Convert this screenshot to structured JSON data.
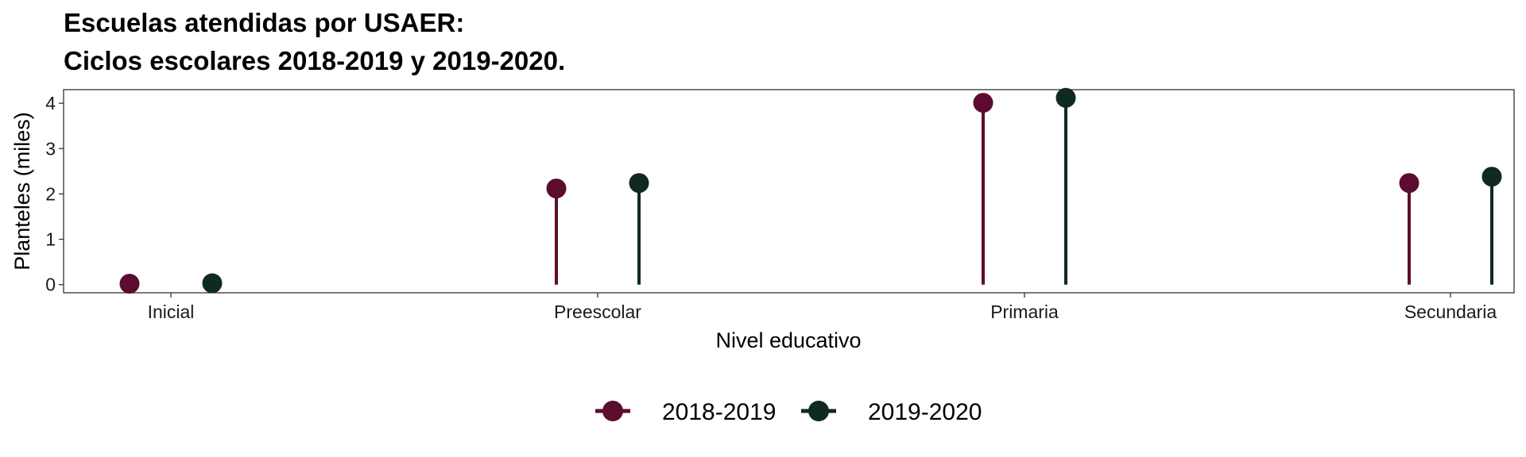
{
  "chart_data": {
    "type": "lollipop",
    "title_lines": [
      "Escuelas atendidas por USAER:",
      "Ciclos escolares 2018-2019 y 2019-2020."
    ],
    "xlabel": "Nivel educativo",
    "ylabel": "Planteles (miles)",
    "categories": [
      "Inicial",
      "Preescolar",
      "Primaria",
      "Secundaria"
    ],
    "yticks": [
      "0",
      "1",
      "2",
      "3",
      "4"
    ],
    "ylim": [
      -0.18,
      4.3
    ],
    "series": [
      {
        "name": "2018-2019",
        "color": "#5c0c2e",
        "values": [
          0.02,
          2.12,
          4.01,
          2.24
        ]
      },
      {
        "name": "2019-2020",
        "color": "#0e2a23",
        "values": [
          0.03,
          2.24,
          4.12,
          2.38
        ]
      }
    ],
    "legend": {
      "position": "bottom",
      "items": [
        "2018-2019",
        "2019-2020"
      ]
    },
    "grid": false
  }
}
